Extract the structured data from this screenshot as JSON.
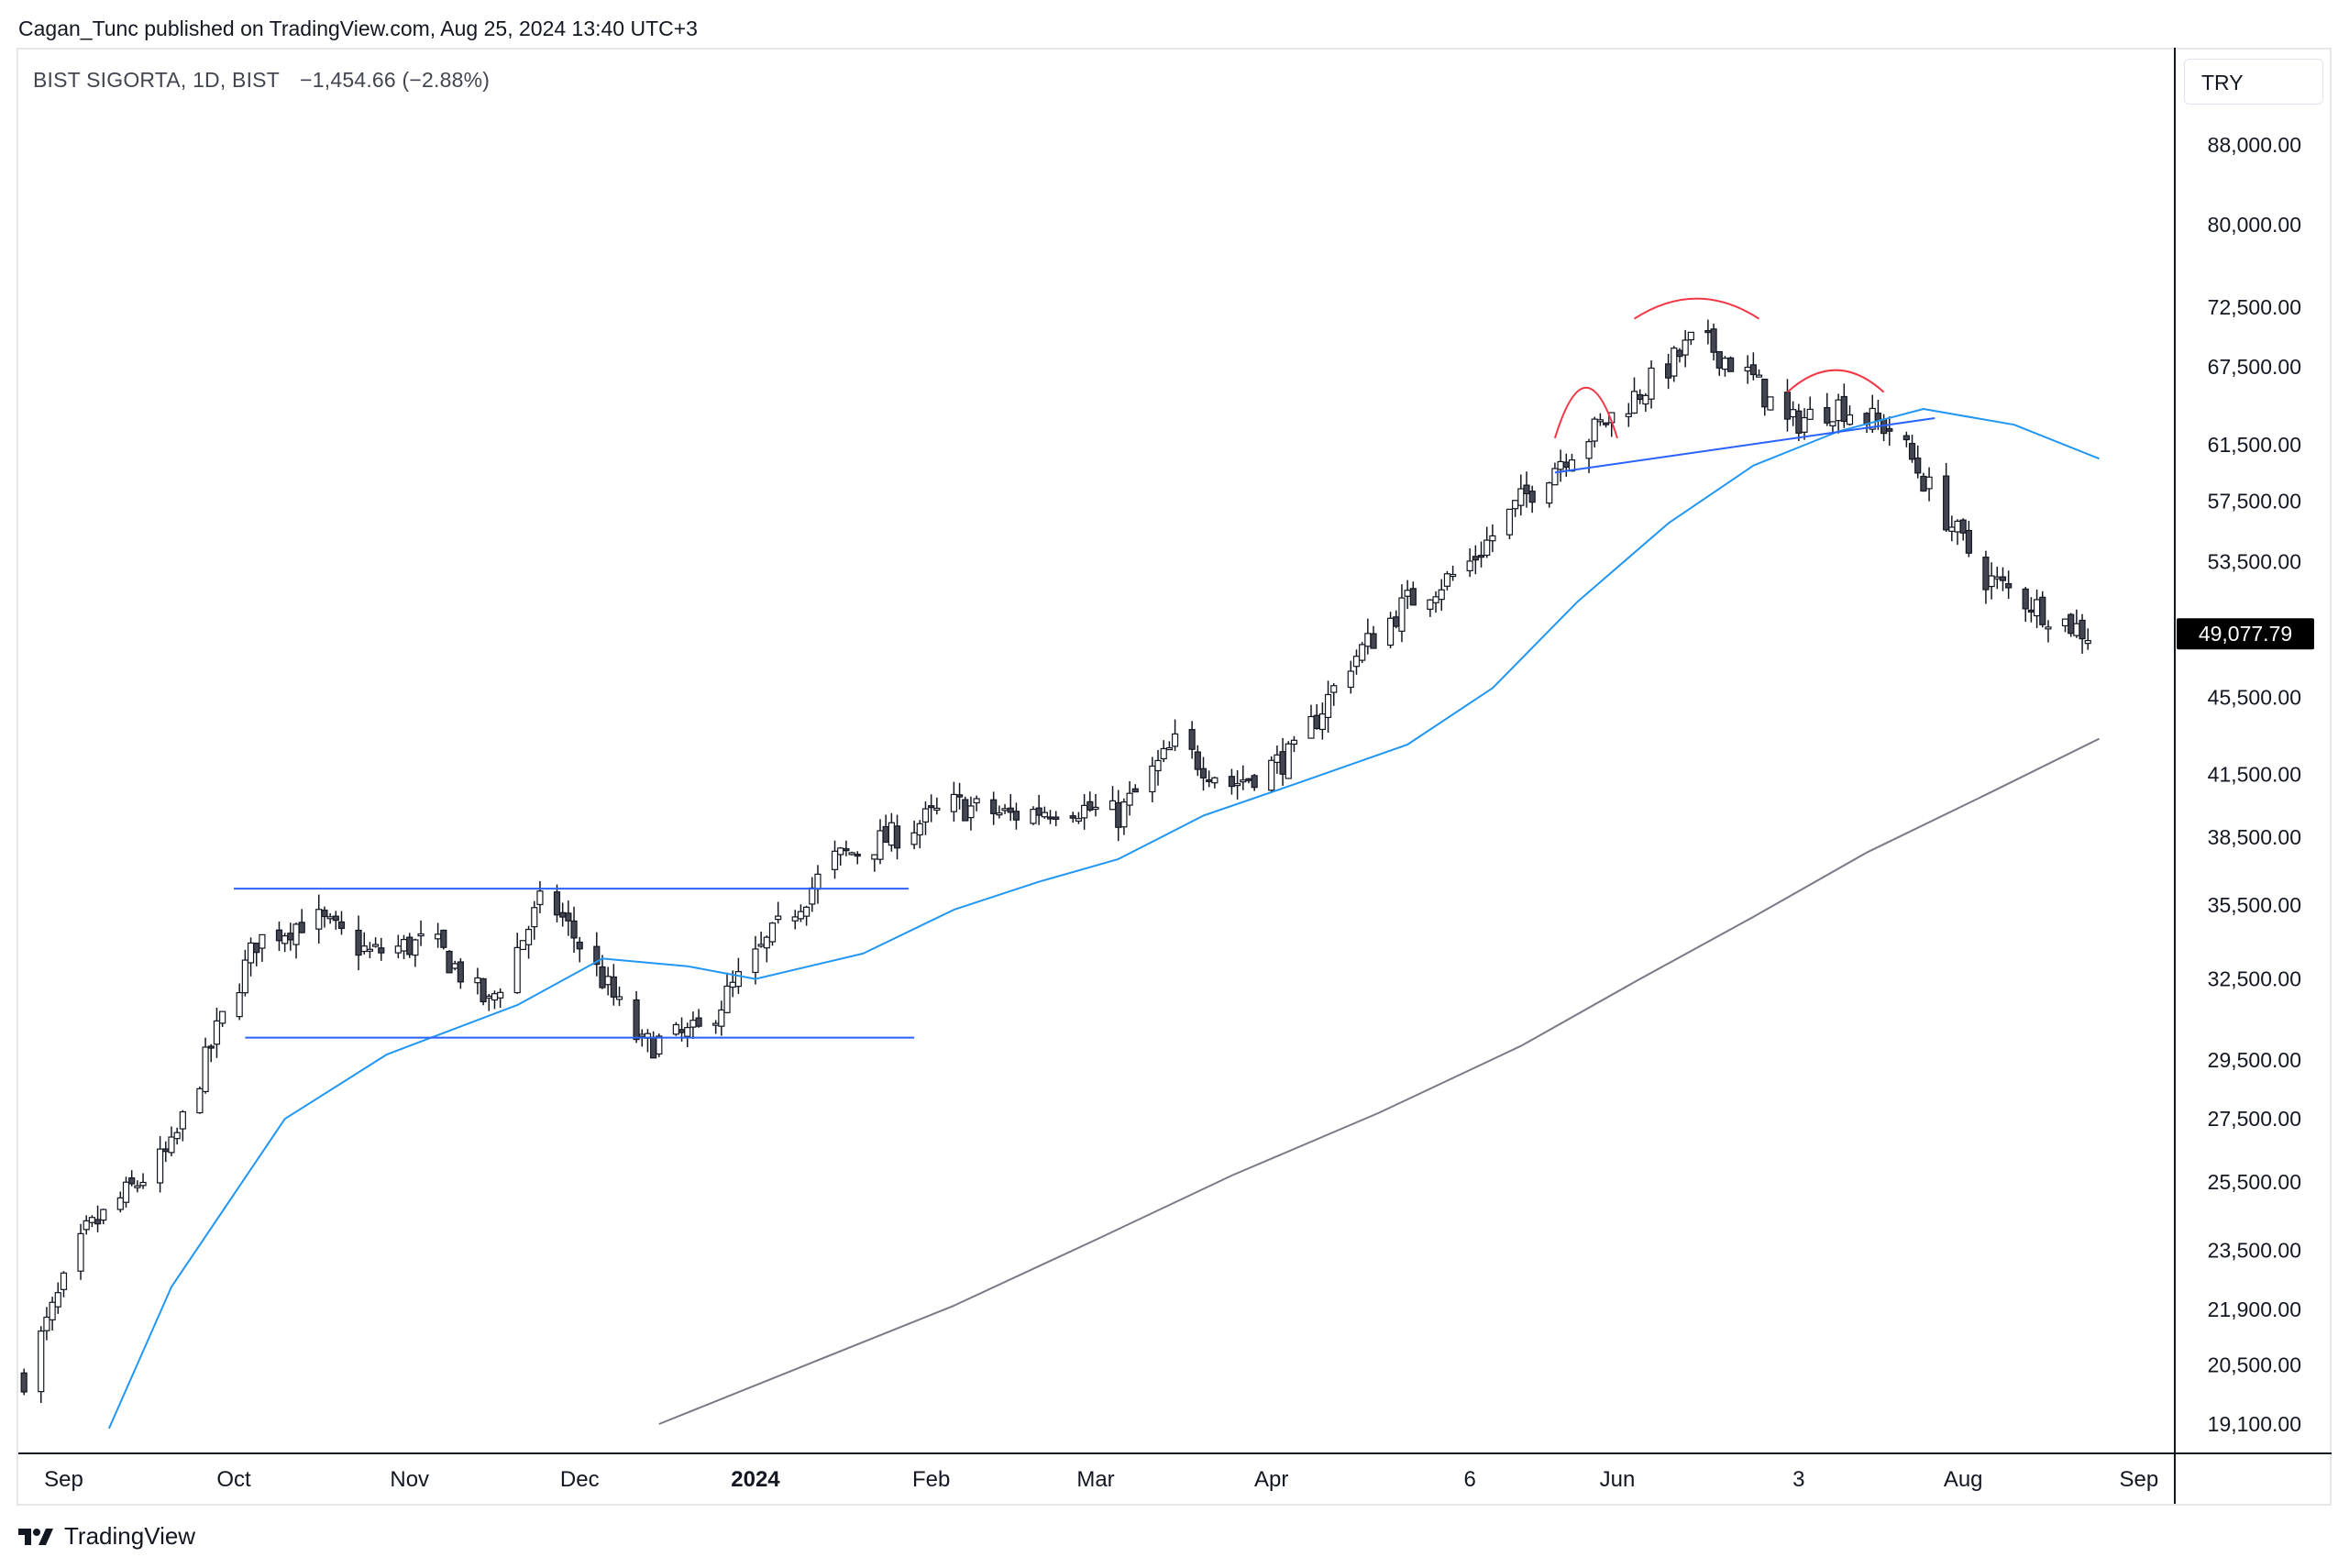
{
  "attribution": "Cagan_Tunc published on TradingView.com, Aug 25, 2024 13:40 UTC+3",
  "legend": {
    "symbol": "BIST SIGORTA, 1D, BIST",
    "change": "−1,454.66 (−2.88%)"
  },
  "currency": "TRY",
  "last_price_label": "49,077.79",
  "footer": "TradingView",
  "colors": {
    "up": "#ffffff",
    "down": "#434651",
    "ma_fast": "#2196f3",
    "ma_slow": "#787b86",
    "trendline": "#2962ff",
    "arc": "#f23645",
    "price_tag": "#000000"
  },
  "chart_data": {
    "type": "candlestick",
    "y_scale": "log",
    "y_ticks": [
      88000,
      80000,
      72500,
      67500,
      61500,
      57500,
      53500,
      45500,
      41500,
      38500,
      35500,
      32500,
      29500,
      27500,
      25500,
      23500,
      21900,
      20500,
      19100
    ],
    "y_tick_labels": [
      "88,000.00",
      "80,000.00",
      "72,500.00",
      "67,500.00",
      "61,500.00",
      "57,500.00",
      "53,500.00",
      "45,500.00",
      "41,500.00",
      "38,500.00",
      "35,500.00",
      "32,500.00",
      "29,500.00",
      "27,500.00",
      "25,500.00",
      "23,500.00",
      "21,900.00",
      "20,500.00",
      "19,100.00"
    ],
    "x_labels": [
      {
        "label": "Sep",
        "date": "2023-09-01"
      },
      {
        "label": "Oct",
        "date": "2023-10-01"
      },
      {
        "label": "Nov",
        "date": "2023-11-01"
      },
      {
        "label": "Dec",
        "date": "2023-12-01"
      },
      {
        "label": "2024",
        "date": "2024-01-01",
        "bold": true
      },
      {
        "label": "Feb",
        "date": "2024-02-01"
      },
      {
        "label": "Mar",
        "date": "2024-03-01"
      },
      {
        "label": "Apr",
        "date": "2024-04-01"
      },
      {
        "label": "6",
        "date": "2024-05-06"
      },
      {
        "label": "Jun",
        "date": "2024-06-01"
      },
      {
        "label": "3",
        "date": "2024-07-03"
      },
      {
        "label": "Aug",
        "date": "2024-08-01"
      },
      {
        "label": "Sep",
        "date": "2024-09-01"
      }
    ],
    "last_price": 49077.79,
    "close_points": [
      {
        "date": "2023-08-25",
        "value": 20200
      },
      {
        "date": "2023-09-05",
        "value": 24000
      },
      {
        "date": "2023-09-20",
        "value": 26500
      },
      {
        "date": "2023-09-28",
        "value": 30500
      },
      {
        "date": "2023-10-05",
        "value": 34000
      },
      {
        "date": "2023-10-15",
        "value": 35000
      },
      {
        "date": "2023-10-25",
        "value": 33500
      },
      {
        "date": "2023-11-05",
        "value": 34000
      },
      {
        "date": "2023-11-15",
        "value": 31500
      },
      {
        "date": "2023-11-25",
        "value": 36000
      },
      {
        "date": "2023-12-05",
        "value": 32500
      },
      {
        "date": "2023-12-12",
        "value": 30000
      },
      {
        "date": "2023-12-22",
        "value": 30500
      },
      {
        "date": "2024-01-05",
        "value": 34500
      },
      {
        "date": "2024-01-15",
        "value": 37500
      },
      {
        "date": "2024-01-25",
        "value": 38500
      },
      {
        "date": "2024-02-05",
        "value": 40000
      },
      {
        "date": "2024-02-15",
        "value": 39500
      },
      {
        "date": "2024-02-25",
        "value": 40000
      },
      {
        "date": "2024-03-05",
        "value": 39500
      },
      {
        "date": "2024-03-15",
        "value": 43000
      },
      {
        "date": "2024-03-25",
        "value": 41000
      },
      {
        "date": "2024-04-05",
        "value": 42500
      },
      {
        "date": "2024-04-15",
        "value": 47500
      },
      {
        "date": "2024-04-25",
        "value": 51000
      },
      {
        "date": "2024-05-05",
        "value": 53000
      },
      {
        "date": "2024-05-15",
        "value": 57500
      },
      {
        "date": "2024-05-22",
        "value": 60500
      },
      {
        "date": "2024-06-01",
        "value": 64000
      },
      {
        "date": "2024-06-10",
        "value": 67500
      },
      {
        "date": "2024-06-15",
        "value": 70000
      },
      {
        "date": "2024-06-25",
        "value": 66500
      },
      {
        "date": "2024-07-01",
        "value": 63000
      },
      {
        "date": "2024-07-10",
        "value": 64500
      },
      {
        "date": "2024-07-20",
        "value": 62500
      },
      {
        "date": "2024-07-28",
        "value": 57000
      },
      {
        "date": "2024-08-05",
        "value": 52500
      },
      {
        "date": "2024-08-15",
        "value": 50500
      },
      {
        "date": "2024-08-23",
        "value": 49077.79
      }
    ],
    "ma_fast_points": [
      {
        "date": "2023-09-09",
        "value": 19000
      },
      {
        "date": "2023-09-20",
        "value": 22500
      },
      {
        "date": "2023-10-10",
        "value": 27500
      },
      {
        "date": "2023-10-28",
        "value": 29700
      },
      {
        "date": "2023-11-20",
        "value": 31500
      },
      {
        "date": "2023-12-05",
        "value": 33300
      },
      {
        "date": "2023-12-20",
        "value": 33000
      },
      {
        "date": "2024-01-01",
        "value": 32500
      },
      {
        "date": "2024-01-20",
        "value": 33500
      },
      {
        "date": "2024-02-05",
        "value": 35300
      },
      {
        "date": "2024-02-20",
        "value": 36500
      },
      {
        "date": "2024-03-05",
        "value": 37500
      },
      {
        "date": "2024-03-20",
        "value": 39500
      },
      {
        "date": "2024-04-05",
        "value": 41000
      },
      {
        "date": "2024-04-25",
        "value": 43000
      },
      {
        "date": "2024-05-10",
        "value": 46000
      },
      {
        "date": "2024-05-25",
        "value": 51000
      },
      {
        "date": "2024-06-10",
        "value": 56000
      },
      {
        "date": "2024-06-25",
        "value": 60000
      },
      {
        "date": "2024-07-10",
        "value": 62500
      },
      {
        "date": "2024-07-25",
        "value": 64200
      },
      {
        "date": "2024-08-10",
        "value": 63000
      },
      {
        "date": "2024-08-25",
        "value": 60500
      }
    ],
    "ma_slow_points": [
      {
        "date": "2023-12-15",
        "value": 19100
      },
      {
        "date": "2024-01-10",
        "value": 20500
      },
      {
        "date": "2024-02-05",
        "value": 22000
      },
      {
        "date": "2024-03-01",
        "value": 23800
      },
      {
        "date": "2024-03-25",
        "value": 25700
      },
      {
        "date": "2024-04-20",
        "value": 27700
      },
      {
        "date": "2024-05-15",
        "value": 30000
      },
      {
        "date": "2024-06-05",
        "value": 32500
      },
      {
        "date": "2024-06-25",
        "value": 35000
      },
      {
        "date": "2024-07-15",
        "value": 37800
      },
      {
        "date": "2024-08-05",
        "value": 40500
      },
      {
        "date": "2024-08-25",
        "value": 43300
      }
    ],
    "annotations": {
      "range_top": {
        "from": "2023-10-01",
        "to": "2024-01-28",
        "value": 36200
      },
      "range_bottom": {
        "from": "2023-10-03",
        "to": "2024-01-29",
        "value": 30300
      },
      "neckline": {
        "from": "2024-05-21",
        "to": "2024-07-27",
        "value_from": 59500,
        "value_to": 63500
      },
      "shoulder_left": {
        "from": "2024-05-21",
        "to": "2024-06-01"
      },
      "head": {
        "from": "2024-06-04",
        "to": "2024-06-26"
      },
      "shoulder_right": {
        "from": "2024-07-01",
        "to": "2024-07-18"
      }
    }
  }
}
